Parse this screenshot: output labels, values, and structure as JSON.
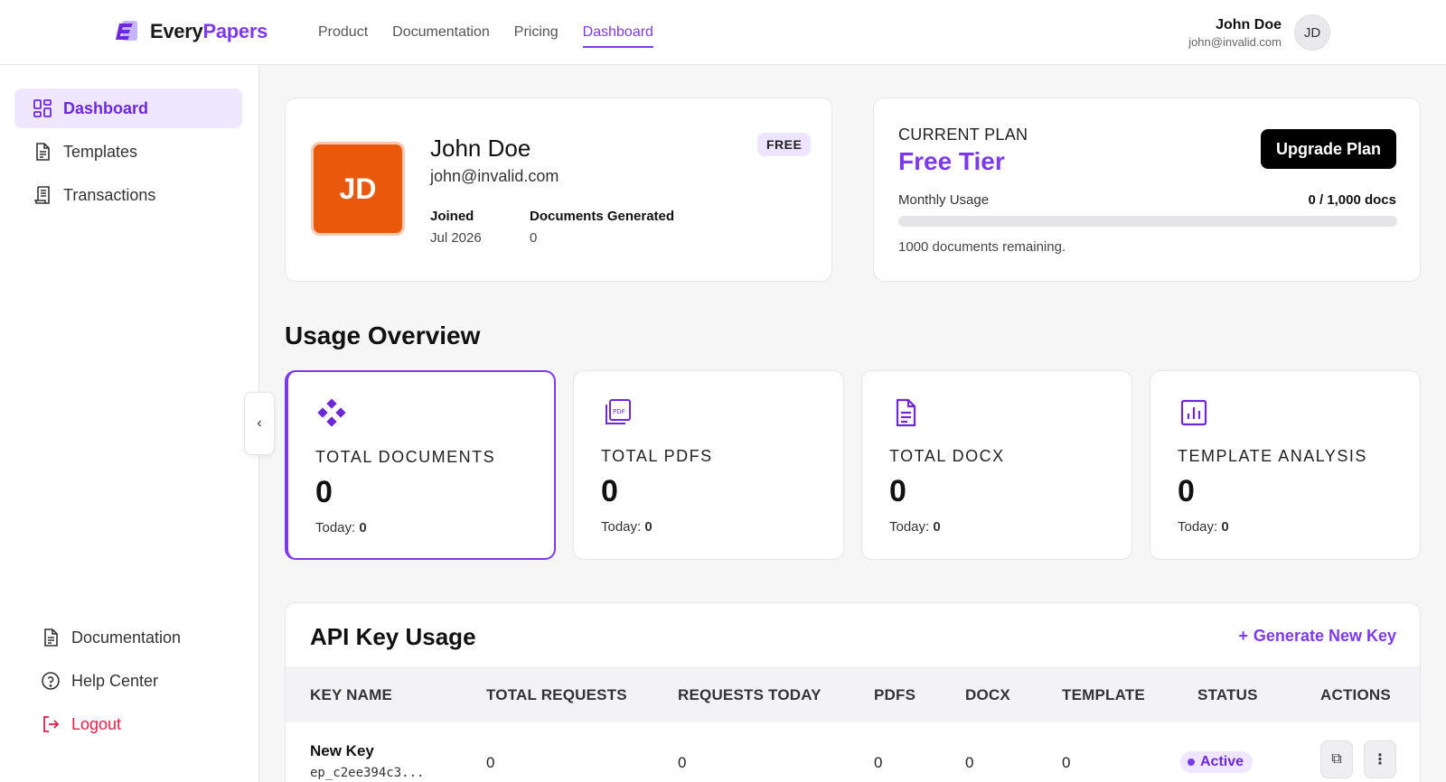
{
  "brand": {
    "name_part1": "Every",
    "name_part2": "Papers"
  },
  "topnav": [
    {
      "label": "Product"
    },
    {
      "label": "Documentation"
    },
    {
      "label": "Pricing"
    },
    {
      "label": "Dashboard",
      "active": true
    }
  ],
  "user": {
    "name": "John Doe",
    "email": "john@invalid.com",
    "initials": "JD"
  },
  "sidebar": {
    "items": [
      {
        "label": "Dashboard",
        "icon": "dashboard-grid-icon",
        "active": true
      },
      {
        "label": "Templates",
        "icon": "document-icon"
      },
      {
        "label": "Transactions",
        "icon": "receipt-icon"
      }
    ],
    "bottom_items": [
      {
        "label": "Documentation",
        "icon": "document-icon"
      },
      {
        "label": "Help Center",
        "icon": "help-circle-icon"
      },
      {
        "label": "Logout",
        "icon": "logout-icon"
      }
    ],
    "collapse_glyph": "‹"
  },
  "profile": {
    "initials": "JD",
    "name": "John Doe",
    "email": "john@invalid.com",
    "badge": "FREE",
    "joined_label": "Joined",
    "joined_value": "Jul 2026",
    "docs_label": "Documents Generated",
    "docs_value": "0"
  },
  "plan": {
    "label": "CURRENT PLAN",
    "name": "Free Tier",
    "upgrade_label": "Upgrade Plan",
    "usage_label": "Monthly Usage",
    "usage_value": "0 / 1,000 docs",
    "usage_fraction": 0,
    "remaining_note": "1000 documents remaining."
  },
  "usage_overview": {
    "title": "Usage Overview",
    "cards": [
      {
        "title": "TOTAL DOCUMENTS",
        "value": "0",
        "today_label": "Today: ",
        "today_value": "0",
        "icon": "diamond-nodes-icon"
      },
      {
        "title": "TOTAL PDFS",
        "value": "0",
        "today_label": "Today: ",
        "today_value": "0",
        "icon": "pdf-stack-icon"
      },
      {
        "title": "TOTAL DOCX",
        "value": "0",
        "today_label": "Today: ",
        "today_value": "0",
        "icon": "docx-file-icon"
      },
      {
        "title": "TEMPLATE ANALYSIS",
        "value": "0",
        "today_label": "Today: ",
        "today_value": "0",
        "icon": "bar-chart-icon"
      }
    ]
  },
  "api": {
    "title": "API Key Usage",
    "generate_label": "Generate New Key",
    "generate_glyph": "+",
    "columns": [
      "KEY NAME",
      "TOTAL REQUESTS",
      "REQUESTS TODAY",
      "PDFS",
      "DOCX",
      "TEMPLATE",
      "STATUS",
      "ACTIONS"
    ],
    "rows": [
      {
        "name": "New Key",
        "key": "ep_c2ee394c3...",
        "total": "0",
        "today": "0",
        "pdfs": "0",
        "docx": "0",
        "template": "0",
        "status": "Active"
      }
    ],
    "copy_glyph": "⧉",
    "more_glyph": "⋮"
  },
  "colors": {
    "accent": "#7c3aed",
    "avatar": "#ea580c",
    "logout": "#e11d48"
  }
}
